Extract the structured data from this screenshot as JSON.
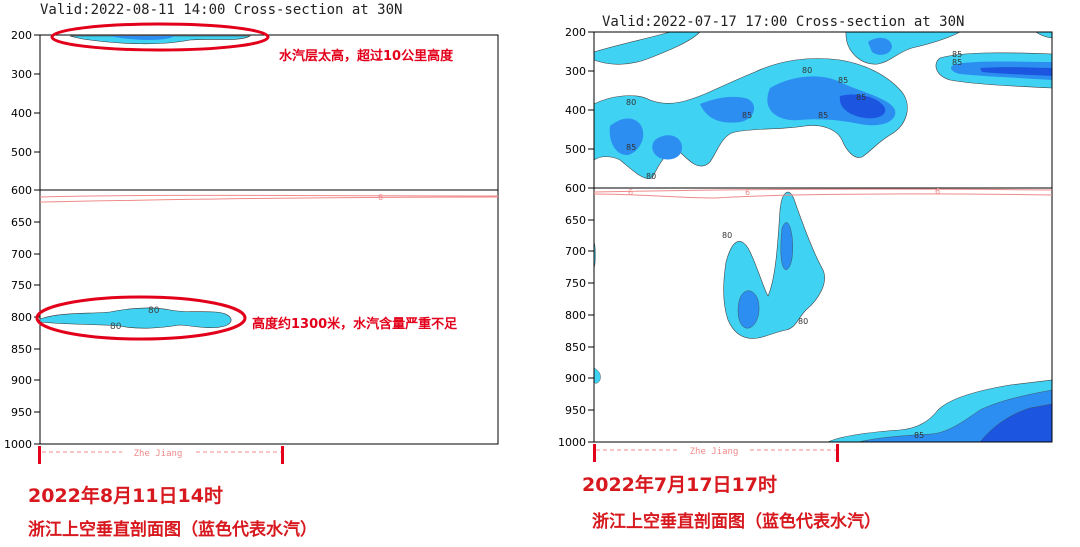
{
  "chart_data": [
    {
      "type": "heatmap",
      "title": "Valid:2022-08-11 14:00 Cross-section at 30N",
      "y_ticks": [
        "200",
        "300",
        "400",
        "500",
        "600",
        "650",
        "700",
        "750",
        "800",
        "850",
        "900",
        "950",
        "1000"
      ],
      "region_label": "Zhe Jiang",
      "contour_labels": [
        "80",
        "80",
        "6"
      ],
      "annotations": [
        "水汽层太高，超过10公里高度",
        "高度约1300米，水汽含量严重不足"
      ],
      "caption_date": "2022年8月11日14时",
      "caption_desc": "浙江上空垂直剖面图（蓝色代表水汽）"
    },
    {
      "type": "heatmap",
      "title": "Valid:2022-07-17 17:00 Cross-section at 30N",
      "y_ticks": [
        "200",
        "300",
        "400",
        "500",
        "600",
        "650",
        "700",
        "750",
        "800",
        "850",
        "900",
        "950",
        "1000"
      ],
      "region_label": "Zhe Jiang",
      "contour_labels": [
        "80",
        "85",
        "80",
        "85",
        "80",
        "85",
        "85",
        "85",
        "85",
        "85",
        "80",
        "80",
        "85",
        "6",
        "6",
        "6"
      ],
      "caption_date": "2022年7月17日17时",
      "caption_desc": "浙江上空垂直剖面图（蓝色代表水汽）"
    }
  ],
  "colors": {
    "light_blue": "#3fd2f2",
    "mid_blue": "#2c8ef0",
    "dark_blue": "#1c56e0",
    "red": "#e3001b",
    "pink_line": "#f08a8a"
  }
}
